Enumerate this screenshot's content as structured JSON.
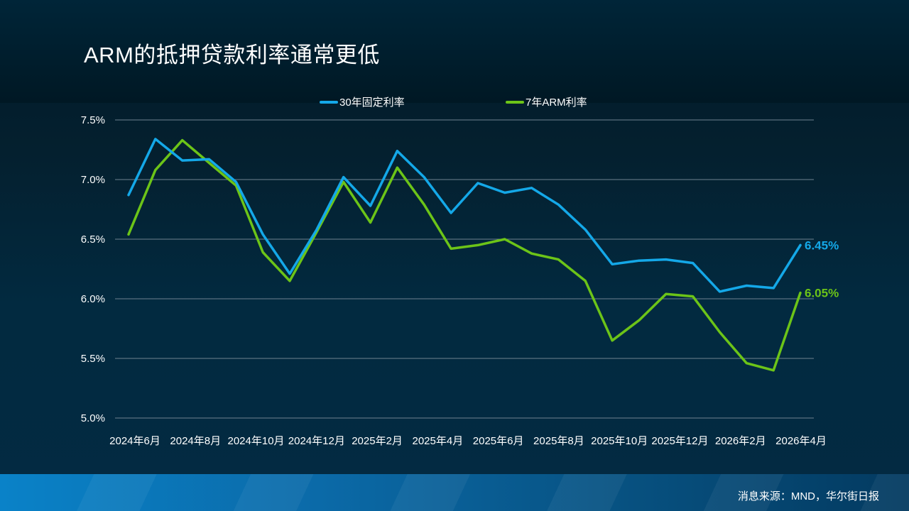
{
  "title": "ARM的抵押贷款利率通常更低",
  "source": "消息来源：MND，华尔街日报",
  "colors": {
    "fixed30": "#14a8e8",
    "arm7": "#6cc418",
    "grid": "#6f8190"
  },
  "chart_data": {
    "type": "line",
    "title": "ARM的抵押贷款利率通常更低",
    "xlabel": "",
    "ylabel": "",
    "ylim": [
      5.0,
      7.5
    ],
    "yticks": [
      "7.5%",
      "7.0%",
      "6.5%",
      "6.0%",
      "5.5%",
      "5.0%"
    ],
    "ytick_values": [
      7.5,
      7.0,
      6.5,
      6.0,
      5.5,
      5.0
    ],
    "xtick_labels": [
      "2024年6月",
      "2024年8月",
      "2024年10月",
      "2024年12月",
      "2025年2月",
      "2025年4月",
      "2025年6月",
      "2025年8月",
      "2025年10月",
      "2025年12月",
      "2026年2月",
      "2026年4月"
    ],
    "grid": true,
    "legend": "top-center",
    "series": [
      {
        "name": "30年固定利率",
        "color": "#14a8e8",
        "end_label": "6.45%",
        "values": [
          6.87,
          7.34,
          7.16,
          7.17,
          6.98,
          6.54,
          6.21,
          6.58,
          7.02,
          6.78,
          7.24,
          7.02,
          6.72,
          6.97,
          6.89,
          6.93,
          6.79,
          6.58,
          6.29,
          6.32,
          6.33,
          6.3,
          6.06,
          6.11,
          6.09,
          6.45
        ]
      },
      {
        "name": "7年ARM利率",
        "color": "#6cc418",
        "end_label": "6.05%",
        "values": [
          6.54,
          7.08,
          7.33,
          7.14,
          6.95,
          6.39,
          6.15,
          6.56,
          6.98,
          6.64,
          7.1,
          6.79,
          6.42,
          6.45,
          6.5,
          6.38,
          6.33,
          6.15,
          5.65,
          5.82,
          6.04,
          6.02,
          5.72,
          5.46,
          5.4,
          6.05
        ]
      }
    ]
  }
}
